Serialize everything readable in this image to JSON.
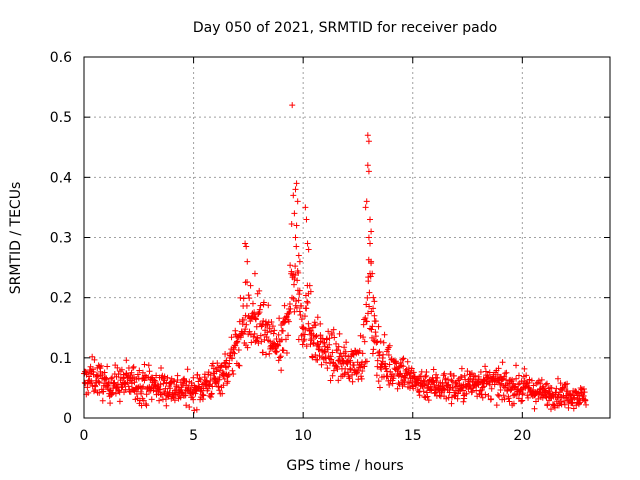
{
  "chart_data": {
    "type": "scatter",
    "title": "Day 050 of 2021, SRMTID for receiver pado",
    "xlabel": "GPS time / hours",
    "ylabel": "SRMTID / TECUs",
    "xlim": [
      0,
      24
    ],
    "ylim": [
      0,
      0.6
    ],
    "xticks": [
      0,
      5,
      10,
      15,
      20
    ],
    "xtick_labels": [
      "0",
      "5",
      "10",
      "15",
      "20"
    ],
    "yticks": [
      0,
      0.1,
      0.2,
      0.3,
      0.4,
      0.5,
      0.6
    ],
    "ytick_labels": [
      "0",
      "0.1",
      "0.2",
      "0.3",
      "0.4",
      "0.5",
      "0.6"
    ],
    "grid": true,
    "marker": "plus",
    "color": "#ff0000",
    "data_extent_hours": [
      0,
      22.9
    ],
    "envelope": {
      "hours": [
        0,
        0.5,
        1,
        2,
        3,
        4,
        5,
        6,
        6.5,
        7,
        7.3,
        7.6,
        8,
        8.5,
        9,
        9.3,
        9.6,
        9.8,
        10,
        10.2,
        10.5,
        11,
        11.5,
        12,
        12.5,
        12.8,
        13,
        13.2,
        13.5,
        14,
        14.5,
        15,
        16,
        17,
        18,
        19,
        20,
        21,
        22,
        22.9
      ],
      "center": [
        0.06,
        0.07,
        0.055,
        0.06,
        0.055,
        0.05,
        0.045,
        0.065,
        0.08,
        0.12,
        0.17,
        0.16,
        0.15,
        0.13,
        0.11,
        0.18,
        0.25,
        0.2,
        0.16,
        0.17,
        0.13,
        0.11,
        0.1,
        0.09,
        0.09,
        0.12,
        0.2,
        0.15,
        0.1,
        0.085,
        0.08,
        0.06,
        0.055,
        0.05,
        0.06,
        0.055,
        0.05,
        0.04,
        0.04,
        0.035
      ],
      "spread": [
        0.025,
        0.03,
        0.025,
        0.03,
        0.03,
        0.025,
        0.025,
        0.03,
        0.03,
        0.04,
        0.06,
        0.05,
        0.05,
        0.04,
        0.04,
        0.06,
        0.09,
        0.07,
        0.05,
        0.05,
        0.04,
        0.035,
        0.035,
        0.03,
        0.03,
        0.05,
        0.09,
        0.06,
        0.04,
        0.035,
        0.03,
        0.025,
        0.025,
        0.025,
        0.025,
        0.025,
        0.025,
        0.02,
        0.02,
        0.015
      ]
    },
    "peak_points": [
      {
        "x": 7.35,
        "y": 0.29
      },
      {
        "x": 7.4,
        "y": 0.285
      },
      {
        "x": 7.45,
        "y": 0.26
      },
      {
        "x": 7.6,
        "y": 0.22
      },
      {
        "x": 7.8,
        "y": 0.24
      },
      {
        "x": 9.5,
        "y": 0.52
      },
      {
        "x": 9.55,
        "y": 0.37
      },
      {
        "x": 9.65,
        "y": 0.38
      },
      {
        "x": 9.7,
        "y": 0.39
      },
      {
        "x": 9.75,
        "y": 0.36
      },
      {
        "x": 9.6,
        "y": 0.34
      },
      {
        "x": 9.7,
        "y": 0.32
      },
      {
        "x": 9.8,
        "y": 0.27
      },
      {
        "x": 9.85,
        "y": 0.26
      },
      {
        "x": 9.65,
        "y": 0.3
      },
      {
        "x": 10.1,
        "y": 0.35
      },
      {
        "x": 10.15,
        "y": 0.33
      },
      {
        "x": 10.2,
        "y": 0.29
      },
      {
        "x": 10.25,
        "y": 0.28
      },
      {
        "x": 10.3,
        "y": 0.22
      },
      {
        "x": 10.35,
        "y": 0.21
      },
      {
        "x": 12.95,
        "y": 0.47
      },
      {
        "x": 13.0,
        "y": 0.46
      },
      {
        "x": 12.95,
        "y": 0.42
      },
      {
        "x": 13.0,
        "y": 0.41
      },
      {
        "x": 12.9,
        "y": 0.36
      },
      {
        "x": 12.85,
        "y": 0.35
      },
      {
        "x": 13.05,
        "y": 0.33
      },
      {
        "x": 13.1,
        "y": 0.31
      },
      {
        "x": 13.0,
        "y": 0.3
      },
      {
        "x": 13.05,
        "y": 0.29
      },
      {
        "x": 13.1,
        "y": 0.26
      },
      {
        "x": 13.15,
        "y": 0.24
      },
      {
        "x": 13.2,
        "y": 0.2
      },
      {
        "x": 13.25,
        "y": 0.17
      }
    ]
  }
}
